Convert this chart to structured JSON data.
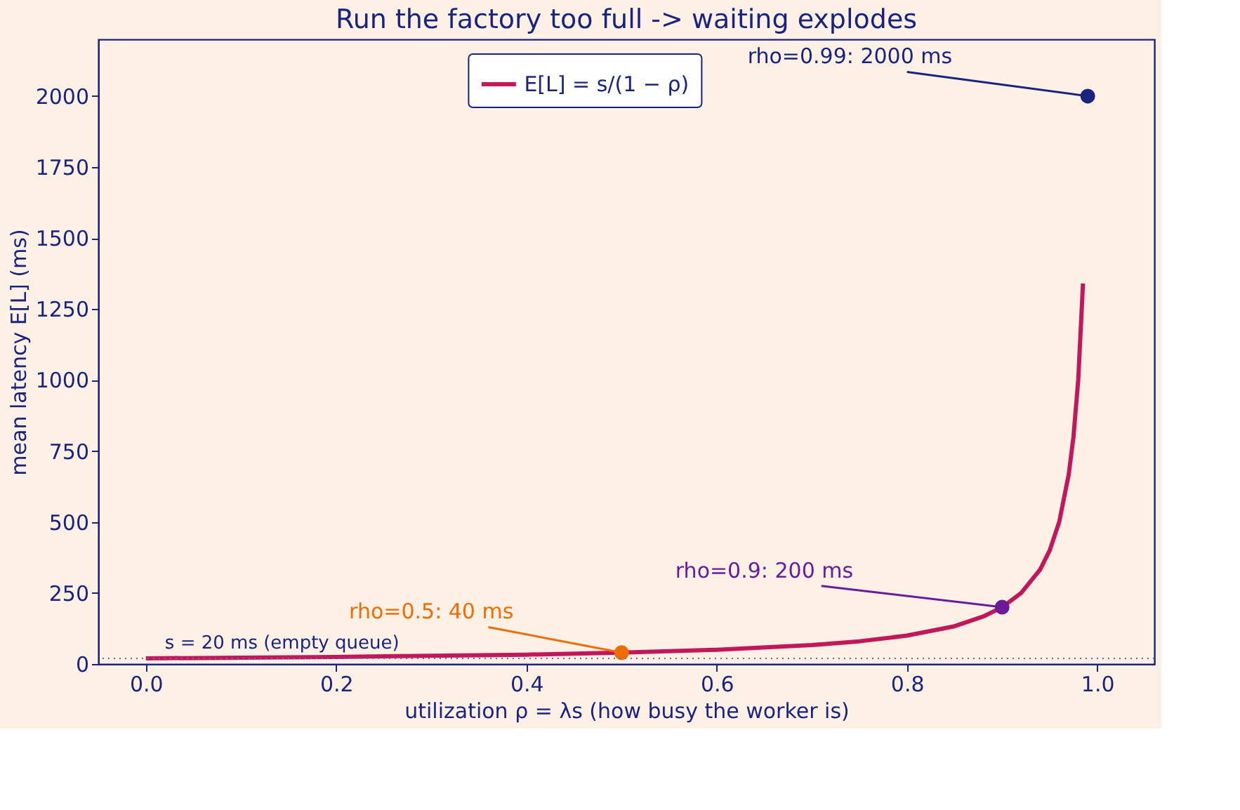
{
  "chart_data": {
    "type": "line",
    "title": "Run the factory too full -> waiting explodes",
    "xlabel": "utilization  ρ = λs  (how busy the worker is)",
    "ylabel": "mean latency E[L] (ms)",
    "xlim": [
      -0.05,
      1.06
    ],
    "xticks": [
      {
        "value": 0,
        "label": "0.0"
      },
      0.2,
      0.4,
      0.6,
      0.8,
      {
        "value": 1,
        "label": "1.0"
      }
    ],
    "ylim": [
      0,
      2200
    ],
    "yticks": [
      0,
      250,
      500,
      750,
      1000,
      1250,
      1500,
      1750,
      2000
    ],
    "series": [
      {
        "name": "E[L] = s/(1 − ρ)",
        "marker": "none",
        "color": "#c2185b",
        "x": [
          0,
          0.1,
          0.2,
          0.3,
          0.4,
          0.5,
          0.6,
          0.7,
          0.75,
          0.8,
          0.85,
          0.88,
          0.9,
          0.92,
          0.94,
          0.95,
          0.96,
          0.97,
          0.975,
          0.98,
          0.985
        ],
        "values": [
          20,
          22,
          25,
          29,
          33,
          40,
          50,
          67,
          80,
          100,
          133,
          167,
          200,
          250,
          333,
          400,
          500,
          667,
          800,
          1000,
          1340
        ]
      },
      {
        "type": "scatter",
        "color": "#ef6c00",
        "x": [
          0.5
        ],
        "values": [
          40
        ]
      },
      {
        "type": "scatter",
        "color": "#6a1b9a",
        "x": [
          0.9
        ],
        "values": [
          200
        ]
      },
      {
        "type": "scatter",
        "color": "#1a237e",
        "x": [
          0.99
        ],
        "values": [
          2000
        ]
      }
    ],
    "annotations": [
      {
        "text": "rho=0.5: 40 ms",
        "x": 0.5,
        "y": 40
      },
      {
        "text": "rho=0.9: 200 ms",
        "x": 0.9,
        "y": 200
      },
      {
        "text": "rho=0.99: 2000 ms",
        "x": 0.99,
        "y": 2000
      }
    ],
    "ref_lines": [
      {
        "axis": "y",
        "value": 20,
        "label": "s = 20 ms (empty queue)",
        "color": "#5c6bc0",
        "line_style": "dotted"
      }
    ],
    "legend": "top",
    "grid": false,
    "marker": "circle",
    "line_style": "solid"
  }
}
